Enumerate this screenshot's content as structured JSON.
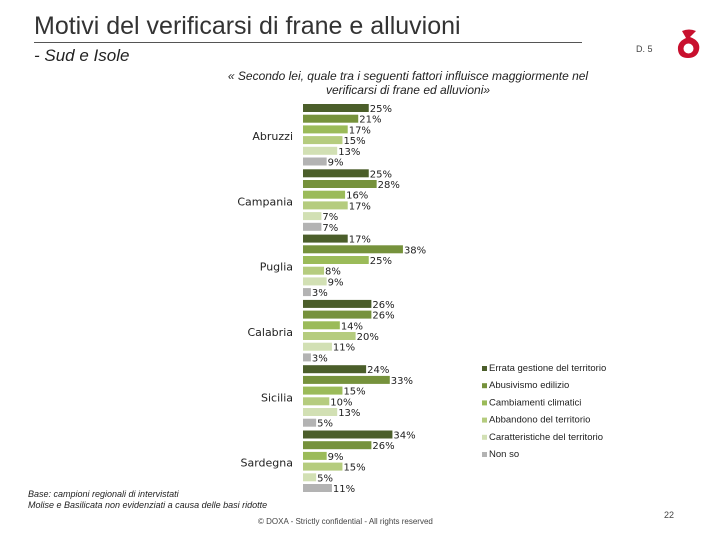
{
  "header": {
    "title": "Motivi del verificarsi di frane e alluvioni",
    "subtitle": "- Sud e Isole",
    "code": "D. 5",
    "question": "« Secondo lei, quale tra i seguenti fattori influisce maggiormente nel verificarsi di frane ed alluvioni»"
  },
  "footer": {
    "note_line1": "Base: campioni regionali di intervistati",
    "note_line2": "Molise e Basilicata non evidenziati a causa delle basi ridotte",
    "copyright": "© DOXA - Strictly confidential - All rights reserved",
    "page_number": "22"
  },
  "colors": {
    "series": [
      "#4b5e2a",
      "#76923c",
      "#9bbb59",
      "#b5cc7e",
      "#d2e0b4",
      "#b3b3b3"
    ],
    "logo": "#c8102e"
  },
  "chart_data": {
    "type": "bar",
    "orientation": "horizontal",
    "categories": [
      "Abruzzi",
      "Campania",
      "Puglia",
      "Calabria",
      "Sicilia",
      "Sardegna"
    ],
    "series": [
      {
        "name": "Errata gestione del territorio",
        "values": [
          25,
          25,
          17,
          26,
          24,
          34
        ]
      },
      {
        "name": "Abusivismo edilizio",
        "values": [
          21,
          28,
          38,
          26,
          33,
          26
        ]
      },
      {
        "name": "Cambiamenti climatici",
        "values": [
          17,
          16,
          25,
          14,
          15,
          9
        ]
      },
      {
        "name": "Abbandono del territorio",
        "values": [
          15,
          17,
          8,
          20,
          10,
          15
        ]
      },
      {
        "name": "Caratteristiche del territorio",
        "values": [
          13,
          7,
          9,
          11,
          13,
          5
        ]
      },
      {
        "name": "Non so",
        "values": [
          9,
          7,
          3,
          3,
          5,
          11
        ]
      }
    ],
    "value_suffix": "%",
    "legend_position": "right",
    "grid": false
  }
}
